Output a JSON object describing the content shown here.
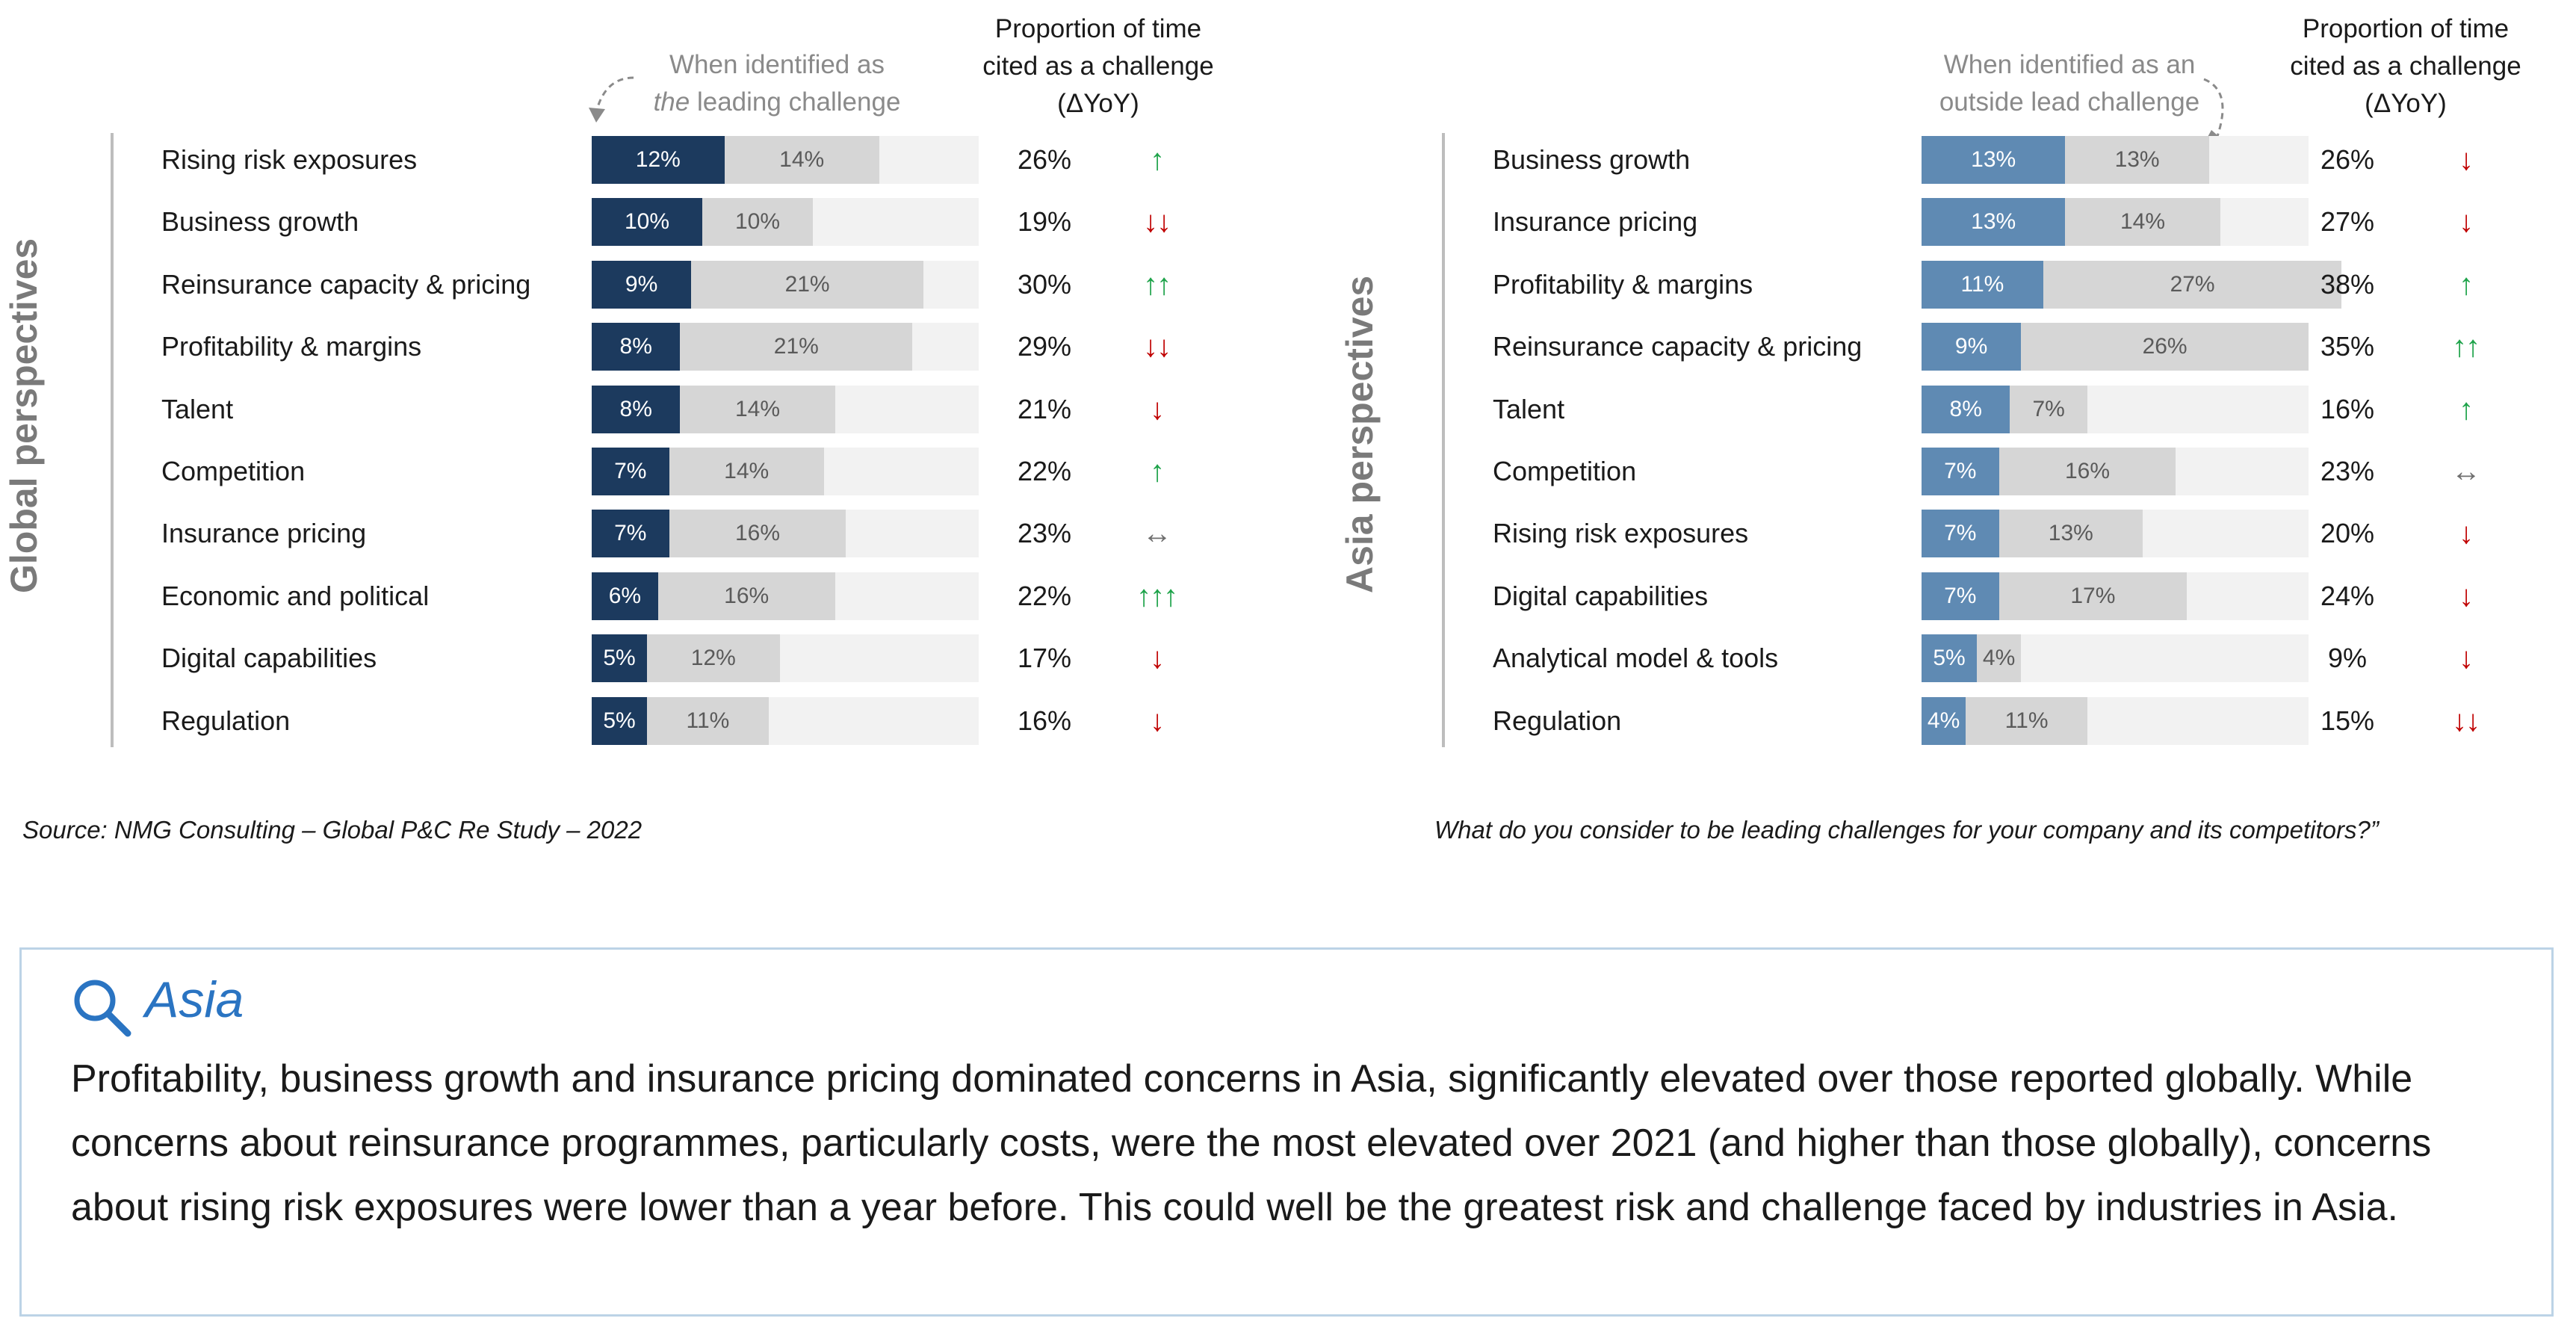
{
  "colors": {
    "global_primary": "#1c3a5e",
    "asia_primary": "#5f8ab3",
    "secondary": "#d6d6d6",
    "track": "#f2f2f2",
    "up": "#1ea34a",
    "down": "#c00000",
    "flat": "#6f6f6f",
    "accent": "#2a74c2"
  },
  "chart_data": [
    {
      "type": "bar",
      "title": "Global perspectives",
      "xlim": [
        0,
        35
      ],
      "header_primary": [
        "When identified as",
        "the",
        "leading challenge"
      ],
      "header_proportion": [
        "Proportion of time",
        "cited as a challenge",
        "(ΔYoY)"
      ],
      "categories": [
        "Rising risk exposures",
        "Business growth",
        "Reinsurance capacity & pricing",
        "Profitability & margins",
        "Talent",
        "Competition",
        "Insurance pricing",
        "Economic and political",
        "Digital capabilities",
        "Regulation"
      ],
      "series": [
        {
          "name": "When identified as the leading challenge",
          "values": [
            12,
            10,
            9,
            8,
            8,
            7,
            7,
            6,
            5,
            5
          ]
        },
        {
          "name": "",
          "values": [
            14,
            10,
            21,
            21,
            14,
            14,
            16,
            16,
            12,
            11
          ]
        }
      ],
      "proportion": [
        26,
        19,
        30,
        29,
        21,
        22,
        23,
        22,
        17,
        16
      ],
      "trend": [
        "↑",
        "↓↓",
        "↑↑",
        "↓↓",
        "↓",
        "↑",
        "↔",
        "↑↑↑",
        "↓",
        "↓"
      ]
    },
    {
      "type": "bar",
      "title": "Asia perspectives",
      "xlim": [
        0,
        35
      ],
      "header_primary": [
        "When identified as an",
        "outside lead challenge"
      ],
      "header_proportion": [
        "Proportion of time",
        "cited as a challenge",
        "(ΔYoY)"
      ],
      "categories": [
        "Business growth",
        "Insurance pricing",
        "Profitability & margins",
        "Reinsurance capacity & pricing",
        "Talent",
        "Competition",
        "Rising risk exposures",
        "Digital capabilities",
        "Analytical model & tools",
        "Regulation"
      ],
      "series": [
        {
          "name": "",
          "values": [
            13,
            13,
            11,
            9,
            8,
            7,
            7,
            7,
            5,
            4
          ]
        },
        {
          "name": "When identified as an outside lead challenge",
          "values": [
            13,
            14,
            27,
            26,
            7,
            16,
            13,
            17,
            4,
            11
          ]
        }
      ],
      "proportion": [
        26,
        27,
        38,
        35,
        16,
        23,
        20,
        24,
        9,
        15
      ],
      "trend": [
        "↓",
        "↓",
        "↑",
        "↑↑",
        "↑",
        "↔",
        "↓",
        "↓",
        "↓",
        "↓↓"
      ]
    }
  ],
  "sources": {
    "left": "Source: NMG Consulting – Global P&C Re Study – 2022",
    "right": "What do you consider to be leading challenges for your company and its competitors?”"
  },
  "insight": {
    "icon": "search-icon",
    "title": "Asia",
    "body": "Profitability, business growth and insurance pricing dominated concerns in Asia, significantly elevated over those reported globally. While concerns about reinsurance programmes, particularly costs, were the most elevated over 2021 (and higher than those globally), concerns about rising risk exposures were lower than a year before. This could well be the greatest risk and challenge faced by industries in Asia."
  }
}
